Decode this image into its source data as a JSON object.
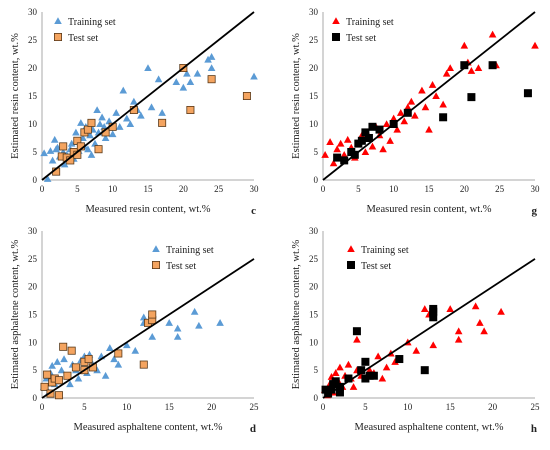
{
  "chart_data": [
    {
      "panel": "c",
      "type": "scatter",
      "title": "",
      "xlabel": "Measured resin content, wt.%",
      "ylabel": "Estimated resin content, wt.%",
      "xlim": [
        0,
        30
      ],
      "ylim": [
        0,
        30
      ],
      "xticks": [
        0,
        5,
        10,
        15,
        20,
        25,
        30
      ],
      "yticks": [
        0,
        5,
        10,
        15,
        20,
        25,
        30
      ],
      "grid": false,
      "legend": "top-left",
      "identity_line": true,
      "series": [
        {
          "name": "Training set",
          "marker": "triangle",
          "color": "#5b9bd5",
          "points": [
            [
              0.3,
              4.8
            ],
            [
              0.8,
              0.2
            ],
            [
              1.2,
              5.2
            ],
            [
              1.5,
              3.5
            ],
            [
              1.8,
              7.2
            ],
            [
              2,
              5.5
            ],
            [
              2.2,
              5.8
            ],
            [
              2.5,
              4.2
            ],
            [
              2.8,
              6
            ],
            [
              3,
              5
            ],
            [
              3.2,
              2.8
            ],
            [
              3.5,
              4.5
            ],
            [
              4,
              5.5
            ],
            [
              4.2,
              6.5
            ],
            [
              4.5,
              3.8
            ],
            [
              4.8,
              8.5
            ],
            [
              5,
              6.8
            ],
            [
              5.2,
              5.2
            ],
            [
              5.5,
              10.2
            ],
            [
              5.8,
              7.5
            ],
            [
              6,
              6
            ],
            [
              6.2,
              9.5
            ],
            [
              6.5,
              5.5
            ],
            [
              6.8,
              8
            ],
            [
              7,
              4.5
            ],
            [
              7.2,
              9
            ],
            [
              7.5,
              6.5
            ],
            [
              7.8,
              12.5
            ],
            [
              8,
              8.5
            ],
            [
              8.2,
              10
            ],
            [
              8.5,
              11.2
            ],
            [
              8.8,
              9.5
            ],
            [
              9,
              7.5
            ],
            [
              9.5,
              10.5
            ],
            [
              10,
              8.2
            ],
            [
              10.5,
              12
            ],
            [
              11,
              9.5
            ],
            [
              11.5,
              16
            ],
            [
              12,
              11
            ],
            [
              12.5,
              10
            ],
            [
              13,
              14
            ],
            [
              13.5,
              12.5
            ],
            [
              14,
              11.5
            ],
            [
              15,
              20
            ],
            [
              15.5,
              13
            ],
            [
              16.5,
              18
            ],
            [
              17,
              12
            ],
            [
              19,
              17.5
            ],
            [
              20,
              16.5
            ],
            [
              20.5,
              19
            ],
            [
              21,
              17.5
            ],
            [
              22,
              19
            ],
            [
              23.5,
              21.5
            ],
            [
              24,
              20
            ],
            [
              24,
              22
            ],
            [
              30,
              18.5
            ]
          ]
        },
        {
          "name": "Test set",
          "marker": "square",
          "color": "#f4a460",
          "points": [
            [
              2,
              1.5
            ],
            [
              2.8,
              4.2
            ],
            [
              3,
              6
            ],
            [
              3.5,
              4
            ],
            [
              4,
              3.5
            ],
            [
              4.5,
              5
            ],
            [
              5,
              7
            ],
            [
              5,
              4.5
            ],
            [
              5.5,
              6
            ],
            [
              6,
              8.5
            ],
            [
              6.5,
              9
            ],
            [
              7,
              10.2
            ],
            [
              8,
              5.5
            ],
            [
              9,
              8.5
            ],
            [
              10,
              9.5
            ],
            [
              13,
              12.5
            ],
            [
              17,
              10.2
            ],
            [
              20,
              20
            ],
            [
              21,
              12.5
            ],
            [
              24,
              18
            ],
            [
              29,
              15
            ]
          ]
        }
      ]
    },
    {
      "panel": "g",
      "type": "scatter",
      "title": "",
      "xlabel": "Measured resin content, wt.%",
      "ylabel": "Estimated resin content, wt.%",
      "xlim": [
        0,
        30
      ],
      "ylim": [
        0,
        30
      ],
      "xticks": [
        0,
        5,
        10,
        15,
        20,
        25,
        30
      ],
      "yticks": [
        0,
        5,
        10,
        15,
        20,
        25,
        30
      ],
      "grid": false,
      "legend": "top-left",
      "identity_line": true,
      "series": [
        {
          "name": "Training set",
          "marker": "triangle",
          "color": "#ff0000",
          "points": [
            [
              0.3,
              4.5
            ],
            [
              1,
              6.8
            ],
            [
              1.5,
              3
            ],
            [
              2,
              5.5
            ],
            [
              2.5,
              6.5
            ],
            [
              3,
              4.5
            ],
            [
              3.5,
              7.2
            ],
            [
              4,
              5.8
            ],
            [
              4.5,
              4
            ],
            [
              5,
              6.5
            ],
            [
              5.5,
              8
            ],
            [
              6,
              5
            ],
            [
              6.5,
              7.8
            ],
            [
              7,
              6
            ],
            [
              7.5,
              9.5
            ],
            [
              8,
              8
            ],
            [
              8.5,
              5.5
            ],
            [
              9,
              10
            ],
            [
              9.5,
              7
            ],
            [
              10,
              11
            ],
            [
              10.5,
              9
            ],
            [
              11,
              12
            ],
            [
              11.5,
              10.5
            ],
            [
              12,
              13
            ],
            [
              12.5,
              14
            ],
            [
              13,
              11.5
            ],
            [
              14,
              16
            ],
            [
              14.5,
              13
            ],
            [
              15,
              9
            ],
            [
              15.5,
              17
            ],
            [
              16,
              15
            ],
            [
              17,
              13.5
            ],
            [
              17.5,
              19
            ],
            [
              18,
              20
            ],
            [
              20,
              24
            ],
            [
              20.5,
              21
            ],
            [
              21,
              19.5
            ],
            [
              22,
              20
            ],
            [
              24,
              26
            ],
            [
              24.5,
              20.5
            ],
            [
              30,
              24
            ]
          ]
        },
        {
          "name": "Test set",
          "marker": "square",
          "color": "#000000",
          "points": [
            [
              2,
              4
            ],
            [
              3,
              3.5
            ],
            [
              4,
              5
            ],
            [
              4.5,
              4.5
            ],
            [
              5,
              6.5
            ],
            [
              5.5,
              7
            ],
            [
              6,
              8.5
            ],
            [
              6.5,
              7.5
            ],
            [
              7,
              9.5
            ],
            [
              8,
              9
            ],
            [
              10,
              10
            ],
            [
              12,
              12
            ],
            [
              17,
              11.2
            ],
            [
              20,
              20.5
            ],
            [
              21,
              14.8
            ],
            [
              24,
              20.5
            ],
            [
              29,
              15.5
            ]
          ]
        }
      ]
    },
    {
      "panel": "d",
      "type": "scatter",
      "title": "",
      "xlabel": "Measured asphaltene content, wt.%",
      "ylabel": "Estimated asphaltene content, wt.%",
      "xlim": [
        0,
        25
      ],
      "ylim": [
        0,
        30
      ],
      "xticks": [
        0,
        5,
        10,
        15,
        20,
        25
      ],
      "yticks": [
        0,
        5,
        10,
        15,
        20,
        25,
        30
      ],
      "grid": false,
      "legend": "top-right",
      "identity_line": true,
      "series": [
        {
          "name": "Training set",
          "marker": "triangle",
          "color": "#5b9bd5",
          "points": [
            [
              0.2,
              2
            ],
            [
              0.5,
              3.5
            ],
            [
              0.8,
              1
            ],
            [
              1,
              4.5
            ],
            [
              1.2,
              5.8
            ],
            [
              1.5,
              2.5
            ],
            [
              1.8,
              6.5
            ],
            [
              2,
              3
            ],
            [
              2.3,
              5
            ],
            [
              2.6,
              7
            ],
            [
              3,
              4
            ],
            [
              3.3,
              2.5
            ],
            [
              3.6,
              6
            ],
            [
              4,
              5
            ],
            [
              4.3,
              3.5
            ],
            [
              4.6,
              6.8
            ],
            [
              5,
              7.5
            ],
            [
              5.3,
              4.5
            ],
            [
              5.6,
              7.8
            ],
            [
              6,
              6
            ],
            [
              6.5,
              5
            ],
            [
              7,
              7.5
            ],
            [
              7.5,
              4
            ],
            [
              8,
              9
            ],
            [
              8.5,
              7
            ],
            [
              9,
              6
            ],
            [
              10,
              9.5
            ],
            [
              11,
              8.5
            ],
            [
              12,
              14.5
            ],
            [
              12,
              13.5
            ],
            [
              13,
              11
            ],
            [
              15,
              13.5
            ],
            [
              16,
              12.5
            ],
            [
              16,
              11
            ],
            [
              18,
              15.5
            ],
            [
              18.5,
              13
            ],
            [
              21,
              13.5
            ]
          ]
        },
        {
          "name": "Test set",
          "marker": "square",
          "color": "#f4a460",
          "points": [
            [
              0.3,
              2
            ],
            [
              0.6,
              4.2
            ],
            [
              1,
              0.8
            ],
            [
              1.2,
              2.8
            ],
            [
              1.5,
              3.5
            ],
            [
              2,
              0.5
            ],
            [
              2,
              3.2
            ],
            [
              2.5,
              9.2
            ],
            [
              3,
              4
            ],
            [
              3.5,
              8.5
            ],
            [
              4,
              5.5
            ],
            [
              5,
              6.5
            ],
            [
              5,
              5
            ],
            [
              5.5,
              7
            ],
            [
              6,
              5.5
            ],
            [
              9,
              8
            ],
            [
              12,
              6
            ],
            [
              12.5,
              13.5
            ],
            [
              13,
              14
            ],
            [
              13,
              15
            ]
          ]
        }
      ]
    },
    {
      "panel": "h",
      "type": "scatter",
      "title": "",
      "xlabel": "Measured asphaltene content, wt.%",
      "ylabel": "Estimated asphaltene content, wt.%",
      "xlim": [
        0,
        25
      ],
      "ylim": [
        0,
        30
      ],
      "xticks": [
        0,
        5,
        10,
        15,
        20,
        25
      ],
      "yticks": [
        0,
        5,
        10,
        15,
        20,
        25,
        30
      ],
      "grid": false,
      "legend": "top-left",
      "identity_line": true,
      "series": [
        {
          "name": "Training set",
          "marker": "triangle",
          "color": "#ff0000",
          "points": [
            [
              0.2,
              1.5
            ],
            [
              0.5,
              0.5
            ],
            [
              0.8,
              2.5
            ],
            [
              1,
              3.8
            ],
            [
              1.2,
              1
            ],
            [
              1.5,
              4.5
            ],
            [
              1.8,
              3
            ],
            [
              2,
              5.5
            ],
            [
              2.3,
              2
            ],
            [
              2.6,
              4
            ],
            [
              3,
              6
            ],
            [
              3.3,
              3.5
            ],
            [
              3.6,
              2
            ],
            [
              4,
              10.5
            ],
            [
              4,
              5
            ],
            [
              4.5,
              4
            ],
            [
              5,
              6.5
            ],
            [
              5.5,
              5
            ],
            [
              6,
              4.5
            ],
            [
              6.5,
              7.5
            ],
            [
              7,
              3.5
            ],
            [
              7.5,
              5.5
            ],
            [
              8,
              8
            ],
            [
              8.5,
              6.5
            ],
            [
              9,
              7
            ],
            [
              10,
              10
            ],
            [
              11,
              8.5
            ],
            [
              12,
              16
            ],
            [
              12.5,
              15
            ],
            [
              13,
              9.5
            ],
            [
              15,
              16
            ],
            [
              16,
              12
            ],
            [
              16,
              10.5
            ],
            [
              18,
              16.5
            ],
            [
              18.5,
              13.5
            ],
            [
              19,
              12
            ],
            [
              21,
              15.5
            ]
          ]
        },
        {
          "name": "Test set",
          "marker": "square",
          "color": "#000000",
          "points": [
            [
              0.3,
              1.5
            ],
            [
              0.6,
              0.8
            ],
            [
              1,
              1.5
            ],
            [
              1.2,
              2.5
            ],
            [
              1.5,
              3
            ],
            [
              2,
              1
            ],
            [
              2,
              2
            ],
            [
              3,
              3.5
            ],
            [
              4,
              12
            ],
            [
              4.5,
              5
            ],
            [
              5,
              3.5
            ],
            [
              5,
              6.5
            ],
            [
              5.5,
              4
            ],
            [
              6,
              4
            ],
            [
              9,
              7
            ],
            [
              12,
              5
            ],
            [
              13,
              14.5
            ],
            [
              13,
              15.5
            ],
            [
              13,
              16
            ]
          ]
        }
      ]
    }
  ]
}
